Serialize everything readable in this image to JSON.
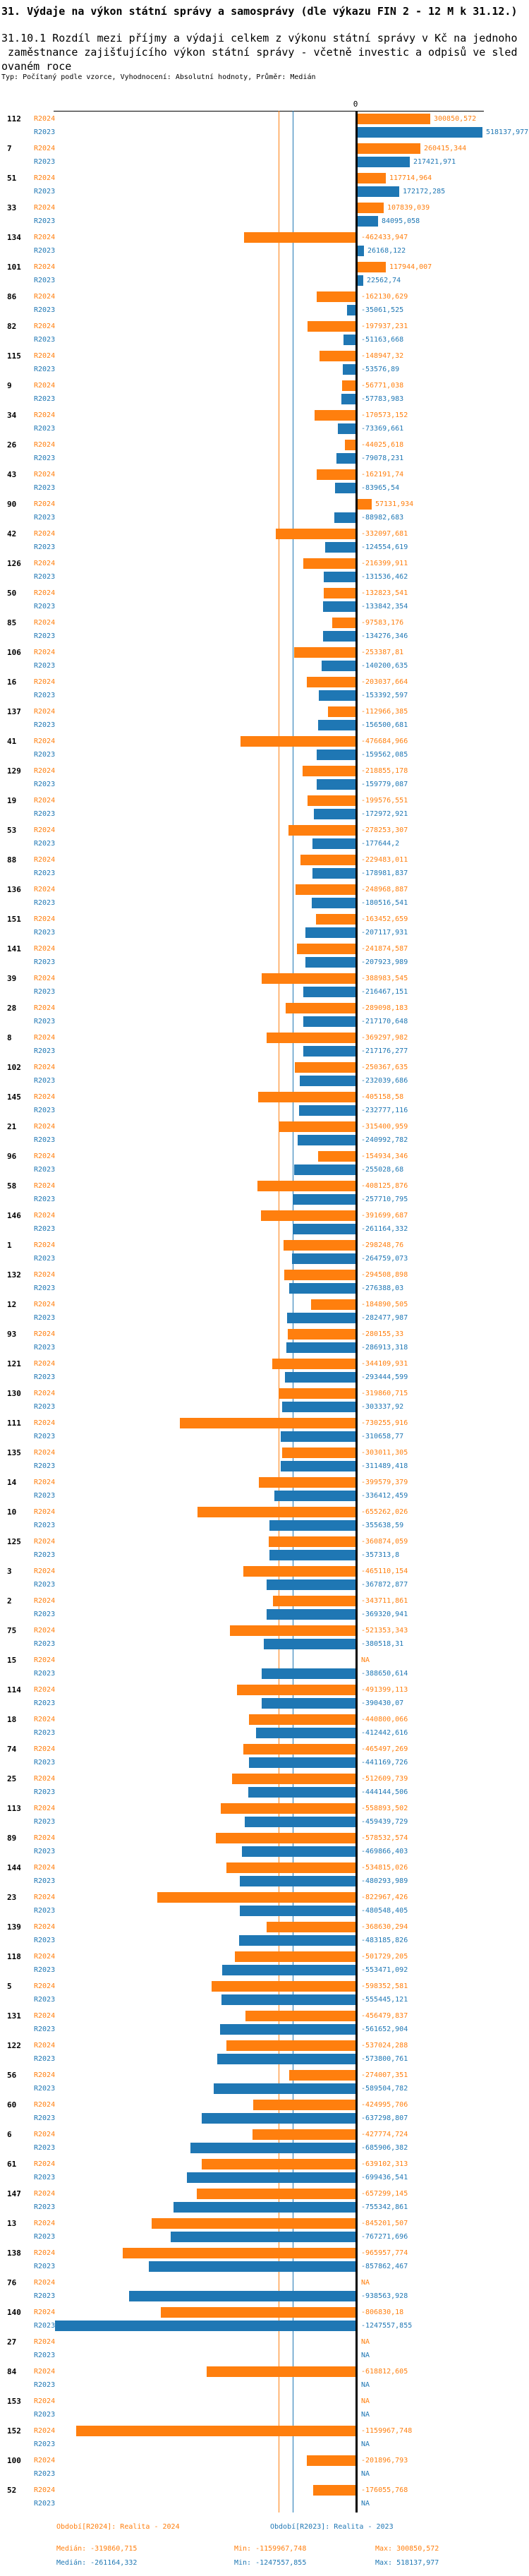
{
  "header": {
    "title": "31. Výdaje na výkon státní správy a samosprávy (dle výkazu FIN 2 - 12 M k 31.12.)",
    "subtitle_lines": [
      "31.10.1 Rozdíl mezi příjmy a výdaji celkem z výkonu státní správy v Kč na jednoho",
      " zaměstnance zajišťujícího výkon státní správy - včetně investic a odpisů ve sled",
      "ovaném roce"
    ],
    "type_line": "Typ: Počítaný podle vzorce, Vyhodnocení: Absolutní hodnoty, Průměr: Medián"
  },
  "axis": {
    "zero_label": "0"
  },
  "chart_data": {
    "type": "bar",
    "orientation": "horizontal",
    "value_unit": "Kč",
    "na_label": "NA",
    "categories": [
      "112",
      "7",
      "51",
      "33",
      "134",
      "101",
      "86",
      "82",
      "115",
      "9",
      "34",
      "26",
      "43",
      "90",
      "42",
      "126",
      "50",
      "85",
      "106",
      "16",
      "137",
      "41",
      "129",
      "19",
      "53",
      "88",
      "136",
      "151",
      "141",
      "39",
      "28",
      "8",
      "102",
      "145",
      "21",
      "96",
      "58",
      "146",
      "1",
      "132",
      "12",
      "93",
      "121",
      "130",
      "111",
      "135",
      "14",
      "10",
      "125",
      "3",
      "2",
      "75",
      "15",
      "114",
      "18",
      "74",
      "25",
      "113",
      "89",
      "144",
      "23",
      "139",
      "118",
      "5",
      "131",
      "122",
      "56",
      "60",
      "6",
      "61",
      "147",
      "13",
      "138",
      "76",
      "140",
      "27",
      "84",
      "153",
      "152",
      "100",
      "52"
    ],
    "series": [
      {
        "name": "R2024",
        "color": "#ff7f0e",
        "values": [
          300850.572,
          260415.344,
          117714.964,
          107839.039,
          -462433.947,
          117944.007,
          -162130.629,
          -197937.231,
          -148947.32,
          -56771.038,
          -170573.152,
          -44025.618,
          -162191.74,
          57131.934,
          -332097.681,
          -216399.911,
          -132823.541,
          -97583.176,
          -253387.81,
          -203037.664,
          -112966.385,
          -476684.966,
          -218855.178,
          -199576.551,
          -278253.307,
          -229483.011,
          -248968.887,
          -163452.659,
          -241874.587,
          -388983.545,
          -289098.183,
          -369297.982,
          -250367.635,
          -405158.58,
          -315400.959,
          -154934.346,
          -408125.876,
          -391699.687,
          -298248.76,
          -294508.898,
          -184890.505,
          -280155.33,
          -344109.931,
          -319860.715,
          -730255.916,
          -303011.305,
          -399579.379,
          -655262.026,
          -360874.059,
          -465110.154,
          -343711.861,
          -521353.343,
          null,
          -491399.113,
          -440800.066,
          -465497.269,
          -512609.739,
          -558893.502,
          -578532.574,
          -534815.026,
          -822967.426,
          -368630.294,
          -501729.205,
          -598352.581,
          -456479.837,
          -537024.288,
          -274007.351,
          -424995.706,
          -427774.724,
          -639102.313,
          -657299.145,
          -845201.507,
          -965957.774,
          null,
          -806830.18,
          null,
          -618812.605,
          null,
          -1159967.748,
          -201896.793,
          -176055.768
        ]
      },
      {
        "name": "R2023",
        "color": "#1f77b4",
        "values": [
          518137.977,
          217421.971,
          172172.285,
          84095.058,
          26168.122,
          22562.74,
          -35061.525,
          -51163.668,
          -53576.89,
          -57783.983,
          -73369.661,
          -79078.231,
          -83965.54,
          -88982.683,
          -124554.619,
          -131536.462,
          -133842.354,
          -134276.346,
          -140200.635,
          -153392.597,
          -156500.681,
          -159562.085,
          -159779.087,
          -172972.921,
          -177644.2,
          -178981.837,
          -180516.541,
          -207117.931,
          -207923.989,
          -216467.151,
          -217170.648,
          -217176.277,
          -232039.686,
          -232777.116,
          -240992.782,
          -255028.68,
          -257710.795,
          -261164.332,
          -264759.073,
          -276388.03,
          -282477.987,
          -286913.318,
          -293444.599,
          -303337.92,
          -310658.77,
          -311489.418,
          -336412.459,
          -355638.59,
          -357313.8,
          -367872.877,
          -369320.941,
          -380518.31,
          -388650.614,
          -390430.07,
          -412442.616,
          -441169.726,
          -444144.506,
          -459439.729,
          -469866.403,
          -480293.989,
          -480548.405,
          -483185.826,
          -553471.092,
          -555445.121,
          -561652.904,
          -573800.761,
          -589504.782,
          -637298.807,
          -685906.382,
          -699436.541,
          -755342.861,
          -767271.696,
          -857862.467,
          -938563.928,
          -1247557.855,
          null,
          null,
          null,
          null,
          null,
          null
        ]
      }
    ],
    "medians": {
      "R2024": -319860.715,
      "R2023": -261164.332
    },
    "xlim": [
      -1300000,
      600000
    ],
    "title": "31.10.1 Rozdíl mezi příjmy a výdaji celkem z výkonu státní správy v Kč na jednoho zaměstnance zajišťujícího výkon státní správy - včetně investic a odpisů ve sledovaném roce"
  },
  "footer": {
    "r2024": {
      "period": "Období[R2024]: Realita - 2024",
      "median": "Medián: -319860,715",
      "min": "Min: -1159967,748",
      "max": "Max: 300850,572"
    },
    "r2023": {
      "period": "Období[R2023]: Realita - 2023",
      "median": "Medián: -261164,332",
      "min": "Min: -1247557,855",
      "max": "Max: 518137,977"
    }
  }
}
